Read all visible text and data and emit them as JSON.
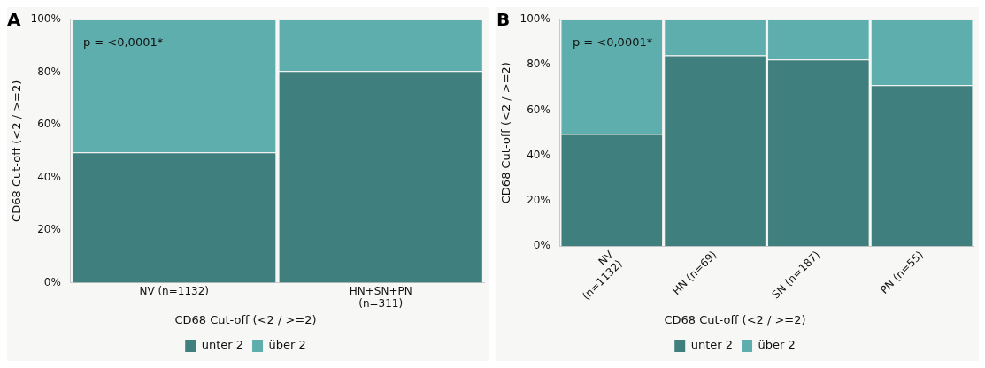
{
  "chart_data": [
    {
      "type": "bar",
      "title": "A",
      "ylabel": "CD68 Cut-off (<2 / >=2)",
      "legend_title": "CD68 Cut-off (<2 / >=2)",
      "categories": [
        "NV (n=1132)",
        "HN+SN+PN\n(n=311)"
      ],
      "stacked": true,
      "series": [
        {
          "name": "unter 2",
          "color": "#3f7f7d",
          "values": [
            49.5,
            80.4
          ]
        },
        {
          "name": "über 2",
          "color": "#5faeae",
          "values": [
            50.5,
            19.6
          ]
        }
      ],
      "ylim": [
        0,
        100
      ],
      "yticks": [
        {
          "value": 0,
          "label": "0%"
        },
        {
          "value": 20,
          "label": "20%"
        },
        {
          "value": 40,
          "label": "40%"
        },
        {
          "value": 60,
          "label": "60%"
        },
        {
          "value": 80,
          "label": "80%"
        },
        {
          "value": 100,
          "label": "100%"
        }
      ],
      "annotations": [
        "p = <0,0001*"
      ],
      "legend": "bottom",
      "grid": false
    },
    {
      "type": "bar",
      "title": "B",
      "ylabel": "CD68 Cut-off (<2 / >=2)",
      "legend_title": "CD68 Cut-off (<2 / >=2)",
      "categories": [
        "NV\n(n=1132)",
        "HN (n=69)",
        "SN (n=187)",
        "PN (n=55)"
      ],
      "stacked": true,
      "series": [
        {
          "name": "unter 2",
          "color": "#3f7f7d",
          "values": [
            49.5,
            84.2,
            82.3,
            71.0
          ]
        },
        {
          "name": "über 2",
          "color": "#5faeae",
          "values": [
            50.5,
            15.8,
            17.7,
            29.0
          ]
        }
      ],
      "ylim": [
        0,
        100
      ],
      "yticks": [
        {
          "value": 0,
          "label": "0%"
        },
        {
          "value": 20,
          "label": "20%"
        },
        {
          "value": 40,
          "label": "40%"
        },
        {
          "value": 60,
          "label": "60%"
        },
        {
          "value": 80,
          "label": "80%"
        },
        {
          "value": 100,
          "label": "100%"
        }
      ],
      "annotations": [
        "p = <0,0001*"
      ],
      "legend": "bottom",
      "grid": false
    }
  ]
}
